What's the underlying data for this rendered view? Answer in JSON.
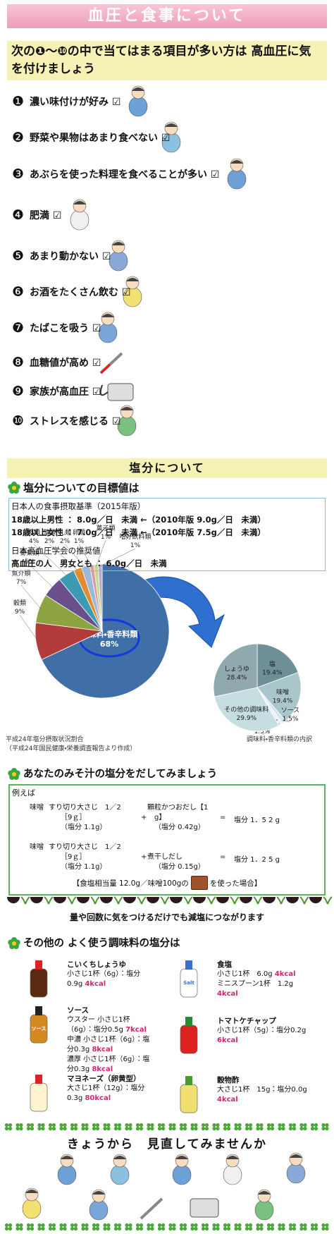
{
  "header": {
    "title": "血圧と食事について"
  },
  "intro": {
    "text": "次の❶～❿の中で当てはまる項目が多い方は 高血圧に気を付けましょう"
  },
  "checklist": [
    {
      "number": "❶",
      "text": "濃い味付けが好み ☑"
    },
    {
      "number": "❷",
      "text": "野菜や果物はあまり食べない ☑"
    },
    {
      "number": "❸",
      "text": "あぶらを使った料理を食べることが多い ☑"
    },
    {
      "number": "❹",
      "text": "肥満 ☑"
    },
    {
      "number": "❺",
      "text": "あまり動かない ☑"
    },
    {
      "number": "❻",
      "text": "お酒をたくさん飲む ☑"
    },
    {
      "number": "❼",
      "text": "たばこを吸う ☑"
    },
    {
      "number": "❽",
      "text": "血糖値が高め ☑"
    },
    {
      "number": "❾",
      "text": "家族が高血圧 ☑"
    },
    {
      "number": "❿",
      "text": "ストレスを感じる ☑"
    }
  ],
  "salt_section": {
    "title": "塩分について",
    "heading": "塩分についての目標値は",
    "lines": [
      "日本人の食事摂取基準（2015年版）",
      "18歳以上男性 ： 8.0g／日　未満 ←（2010年版 9.0g／日　未満）",
      "18歳以上女性 ： 7.0g／日　未満 ←（2010年版 7.5g／日　未満）",
      "日本高血圧学会の推奨値",
      "高血圧の人　男女とも ： 6.0g／日　未満"
    ]
  },
  "chart_data": [
    {
      "type": "pie",
      "title": "平成24年塩分摂取状況割合",
      "source": "（平成24年国民健康・栄養調査報告より作成）",
      "categories": [
        "調味料・香辛料類",
        "穀類",
        "魚介類",
        "野菜類",
        "肉類",
        "藻類",
        "乳類",
        "卵類",
        "菓子類",
        "嗜好飲料類"
      ],
      "values": [
        68,
        9,
        7,
        5,
        4,
        2,
        2,
        1,
        1,
        1
      ],
      "value_labels": [
        "68%",
        "9%",
        "7%",
        "5%",
        "4%",
        "2%",
        "2%",
        "1%",
        "1%",
        "1%"
      ],
      "colors": [
        "#3f6fa6",
        "#b23b3b",
        "#8ea443",
        "#6b4f8c",
        "#3c9bb3",
        "#e18b33",
        "#9cb9da",
        "#d99c9c",
        "#c3d98f",
        "#b9a9d3"
      ]
    },
    {
      "type": "pie",
      "title": "調味料・香辛料類の内訳",
      "categories": [
        "塩",
        "味噌",
        "ソース",
        "マヨネーズ",
        "その他の調味料",
        "しょうゆ"
      ],
      "values": [
        19.4,
        19.4,
        1.5,
        1.5,
        29.9,
        28.4
      ],
      "value_labels": [
        "19.4%",
        "19.4%",
        "1.5%",
        "1.5%",
        "29.9%",
        "28.4%"
      ],
      "colors": [
        "#6f8f96",
        "#a9c6cc",
        "#d2e5e9",
        "#e8f1f3",
        "#c6dde2",
        "#90a9ae"
      ]
    }
  ],
  "miso": {
    "heading": "あなたのみそ汁の塩分をだしてみましょう",
    "example": "例えば",
    "rows": [
      {
        "ingredient": "味噌",
        "amount": [
          "すり切り大さじ　1／2",
          "［9ｇ］",
          "（塩分 1.1g）"
        ],
        "plus": "+",
        "dashi": [
          "顆粒かつおだし【1",
          "g】",
          "（塩分 0.42g）"
        ],
        "equals": "=",
        "result": "塩分 1．5 2 g"
      },
      {
        "ingredient": "味噌",
        "amount": [
          "すり切り大さじ　1／2",
          "［9ｇ］",
          "（塩分 1.1g）"
        ],
        "plus": "+",
        "dashi": [
          "煮干しだし",
          "（塩分 0.15g）"
        ],
        "equals": "=",
        "result": "塩分 1．2 5 g"
      }
    ],
    "note_before": "【食塩相当量 12.0g／味噌100gの",
    "note_after": "を使った場合】"
  },
  "tip": "量や回数に気をつけるだけでも減塩につながります",
  "seasonings": {
    "heading": "その他の よく使う調味料の塩分は",
    "items": [
      {
        "name": "こいくちしょうゆ",
        "lines": [
          {
            "text": "小さじ1杯（6g）：塩分0.9g",
            "kcal": "4kcal"
          }
        ]
      },
      {
        "name": "食塩",
        "icon_label": "Salt",
        "lines": [
          {
            "text": "小さじ1杯　6.0g",
            "kcal": "4kcal"
          },
          {
            "text": "ミニスプーン1杯　1.2g",
            "kcal": "4kcal"
          }
        ]
      },
      {
        "name": "ソース",
        "icon_label": "ソース",
        "lines": [
          {
            "text": "ウスター 小さじ1杯（6g）：塩分0.5g",
            "kcal": "7kcal"
          },
          {
            "text": "中濃 小さじ1杯（6g）：塩分0.3g",
            "kcal": "8kcal"
          },
          {
            "text": "濃厚 小さじ1杯（6g）：塩分0.3g",
            "kcal": "8kcal"
          }
        ]
      },
      {
        "name": "トマトケチャップ",
        "lines": [
          {
            "text": "小さじ1杯（5g）：塩分0.2g",
            "kcal": "6kcal"
          }
        ]
      },
      {
        "name": "マヨネーズ（卵黄型）",
        "lines": [
          {
            "text": "大さじ1杯（12g）：塩分0.3g",
            "kcal": "80kcal"
          }
        ]
      },
      {
        "name": "穀物酢",
        "lines": [
          {
            "text": "大さじ1杯　15g：塩分0.0g",
            "kcal": "4kcal"
          }
        ]
      }
    ]
  },
  "closing": {
    "title": "きょうから　見直してみませんか"
  }
}
